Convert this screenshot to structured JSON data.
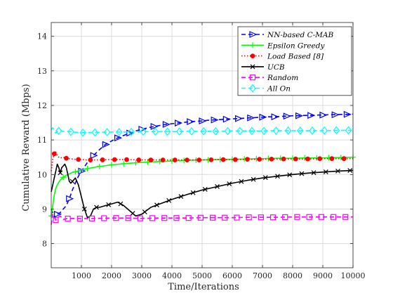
{
  "chart_data": {
    "type": "line",
    "title": "",
    "xlabel": "Time/Iterations",
    "ylabel": "Cumulative Reward (Mbps)",
    "xlim": [
      0,
      10000
    ],
    "ylim": [
      7.3,
      14.4
    ],
    "xticks": [
      1000,
      2000,
      3000,
      4000,
      5000,
      6000,
      7000,
      8000,
      9000,
      10000
    ],
    "yticks": [
      8,
      9,
      10,
      11,
      12,
      13,
      14
    ],
    "grid": true,
    "legend_position": "top-right",
    "series": [
      {
        "name": "NN-based C-MAB",
        "color": "#0000ff",
        "dash": "dashed",
        "marker": "triangle-right",
        "x": [
          0,
          50,
          100,
          150,
          200,
          300,
          400,
          500,
          600,
          700,
          800,
          900,
          1000,
          1200,
          1400,
          1600,
          1800,
          2000,
          2200,
          2400,
          2600,
          2800,
          3000,
          3200,
          3400,
          3600,
          3800,
          4000,
          4200,
          4400,
          4600,
          4800,
          5000,
          5200,
          5400,
          5600,
          5800,
          6000,
          6200,
          6400,
          6600,
          6800,
          7000,
          7200,
          7400,
          7600,
          7800,
          8000,
          8200,
          8400,
          8600,
          8800,
          9000,
          9200,
          9400,
          9600,
          9800,
          10000
        ],
        "y": [
          9.0,
          8.9,
          8.75,
          8.8,
          8.85,
          8.9,
          9.0,
          9.1,
          9.3,
          9.55,
          9.75,
          9.95,
          10.1,
          10.35,
          10.55,
          10.72,
          10.87,
          10.97,
          11.06,
          11.13,
          11.2,
          11.26,
          11.31,
          11.35,
          11.39,
          11.42,
          11.45,
          11.47,
          11.49,
          11.51,
          11.53,
          11.54,
          11.55,
          11.57,
          11.58,
          11.59,
          11.6,
          11.61,
          11.62,
          11.63,
          11.64,
          11.65,
          11.66,
          11.67,
          11.67,
          11.68,
          11.69,
          11.7,
          11.7,
          11.71,
          11.71,
          11.72,
          11.72,
          11.73,
          11.73,
          11.74,
          11.74,
          11.75
        ]
      },
      {
        "name": "Epsilon Greedy",
        "color": "#00ff00",
        "dash": "solid",
        "marker": "plus",
        "x": [
          0,
          50,
          100,
          150,
          200,
          250,
          300,
          400,
          500,
          600,
          700,
          800,
          1000,
          1200,
          1500,
          2000,
          2500,
          3000,
          3500,
          4000,
          4500,
          5000,
          5500,
          6000,
          6500,
          7000,
          7500,
          8000,
          8500,
          9000,
          9500,
          10000
        ],
        "y": [
          8.8,
          9.1,
          9.4,
          9.6,
          9.7,
          9.78,
          9.84,
          9.92,
          9.98,
          10.02,
          10.06,
          10.08,
          10.13,
          10.17,
          10.22,
          10.28,
          10.32,
          10.35,
          10.37,
          10.39,
          10.41,
          10.42,
          10.43,
          10.44,
          10.45,
          10.46,
          10.47,
          10.47,
          10.48,
          10.48,
          10.49,
          10.5
        ]
      },
      {
        "name": "Load Based [8]",
        "color": "#ff0000",
        "dash": "dotted",
        "marker": "asterisk",
        "x": [
          0,
          50,
          100,
          150,
          200,
          250,
          300,
          400,
          500,
          600,
          700,
          800,
          1000,
          1200,
          1500,
          2000,
          2500,
          3000,
          3500,
          4000,
          4500,
          5000,
          5500,
          6000,
          6500,
          7000,
          7500,
          8000,
          8500,
          9000,
          9500,
          10000
        ],
        "y": [
          10.1,
          10.45,
          10.6,
          10.65,
          10.55,
          10.5,
          10.48,
          10.5,
          10.47,
          10.46,
          10.45,
          10.44,
          10.43,
          10.42,
          10.42,
          10.43,
          10.43,
          10.42,
          10.42,
          10.42,
          10.42,
          10.42,
          10.43,
          10.43,
          10.44,
          10.44,
          10.45,
          10.45,
          10.45,
          10.46,
          10.46,
          10.46
        ]
      },
      {
        "name": "UCB",
        "color": "#000000",
        "dash": "solid",
        "marker": "x",
        "x": [
          0,
          50,
          100,
          150,
          200,
          250,
          300,
          350,
          400,
          450,
          500,
          550,
          600,
          650,
          700,
          750,
          800,
          900,
          1000,
          1100,
          1200,
          1300,
          1400,
          1500,
          1600,
          1800,
          2000,
          2200,
          2400,
          2600,
          2800,
          3000,
          3300,
          3600,
          4000,
          4500,
          5000,
          5500,
          6000,
          6500,
          7000,
          7500,
          8000,
          8500,
          9000,
          9500,
          10000
        ],
        "y": [
          9.5,
          9.7,
          9.9,
          10.1,
          10.3,
          10.2,
          10.05,
          10.2,
          10.25,
          10.3,
          10.2,
          10.0,
          9.8,
          9.75,
          9.8,
          9.85,
          9.9,
          9.7,
          9.35,
          9.0,
          8.75,
          8.8,
          9.0,
          9.05,
          9.05,
          9.1,
          9.15,
          9.2,
          9.1,
          8.95,
          8.8,
          8.85,
          9.05,
          9.15,
          9.28,
          9.42,
          9.55,
          9.65,
          9.75,
          9.83,
          9.9,
          9.95,
          10.0,
          10.04,
          10.07,
          10.1,
          10.12
        ]
      },
      {
        "name": "Random",
        "color": "#ff00ff",
        "dash": "dashed",
        "marker": "square",
        "x": [
          0,
          50,
          100,
          150,
          200,
          300,
          400,
          500,
          700,
          1000,
          1500,
          2000,
          2500,
          3000,
          3500,
          4000,
          4500,
          5000,
          5500,
          6000,
          6500,
          7000,
          7500,
          8000,
          8500,
          9000,
          9500,
          10000
        ],
        "y": [
          8.55,
          8.85,
          8.8,
          8.68,
          8.75,
          8.8,
          8.7,
          8.72,
          8.73,
          8.72,
          8.73,
          8.74,
          8.74,
          8.73,
          8.74,
          8.74,
          8.74,
          8.75,
          8.75,
          8.75,
          8.76,
          8.76,
          8.76,
          8.77,
          8.77,
          8.77,
          8.77,
          8.77
        ]
      },
      {
        "name": "All On",
        "color": "#00ffff",
        "dash": "dashed",
        "marker": "diamond",
        "x": [
          0,
          50,
          100,
          150,
          200,
          300,
          400,
          500,
          700,
          1000,
          1500,
          2000,
          2500,
          3000,
          3500,
          4000,
          4500,
          5000,
          5500,
          6000,
          6500,
          7000,
          7500,
          8000,
          8500,
          9000,
          9500,
          10000
        ],
        "y": [
          11.3,
          11.35,
          11.28,
          11.2,
          11.25,
          11.28,
          11.24,
          11.25,
          11.23,
          11.21,
          11.22,
          11.23,
          11.23,
          11.24,
          11.24,
          11.24,
          11.25,
          11.25,
          11.25,
          11.26,
          11.26,
          11.26,
          11.27,
          11.27,
          11.27,
          11.27,
          11.28,
          11.28
        ]
      }
    ]
  }
}
